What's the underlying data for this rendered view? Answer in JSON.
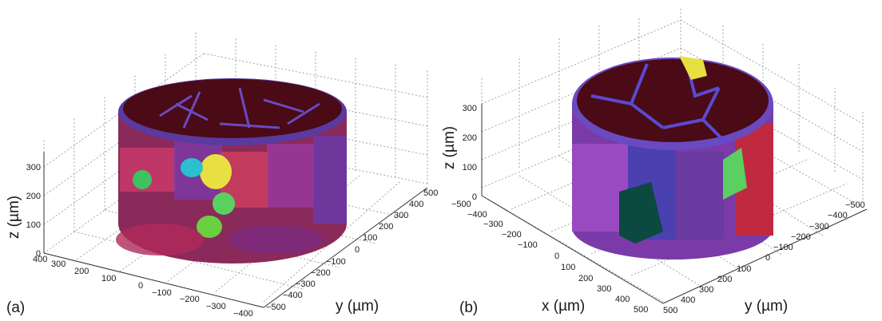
{
  "panels": [
    {
      "id": "a",
      "letter": "(a)",
      "z_axis_label": "z (µm)",
      "y_axis_label": "y (µm)",
      "x_axis_label": "",
      "z_ticks": [
        "0",
        "100",
        "200",
        "300"
      ],
      "x_ticks": [
        "400",
        "300",
        "200",
        "100",
        "0",
        "−100",
        "−200",
        "−300",
        "−400"
      ],
      "y_ticks": [
        "−500",
        "−400",
        "−300",
        "−200",
        "−100",
        "0",
        "100",
        "200",
        "300",
        "400",
        "500"
      ],
      "colors": {
        "top": "#4a0a16",
        "edge": "#5a3aa0",
        "grain_a": "#b0306a",
        "grain_b": "#7a3aa8"
      }
    },
    {
      "id": "b",
      "letter": "(b)",
      "z_axis_label": "z (µm)",
      "y_axis_label": "y (µm)",
      "x_axis_label": "x (µm)",
      "z_ticks": [
        "0",
        "100",
        "200",
        "300"
      ],
      "x_ticks": [
        "−500",
        "−400",
        "−300",
        "−200",
        "−100",
        "0",
        "100",
        "200",
        "300",
        "400",
        "500"
      ],
      "y_ticks": [
        "500",
        "400",
        "300",
        "200",
        "100",
        "0",
        "−100",
        "−200",
        "−300",
        "−400",
        "−500"
      ],
      "colors": {
        "top": "#4a0a16",
        "edge": "#5a3aa0",
        "grain_a": "#8a4ac0",
        "grain_b": "#3a3aa8"
      }
    }
  ]
}
